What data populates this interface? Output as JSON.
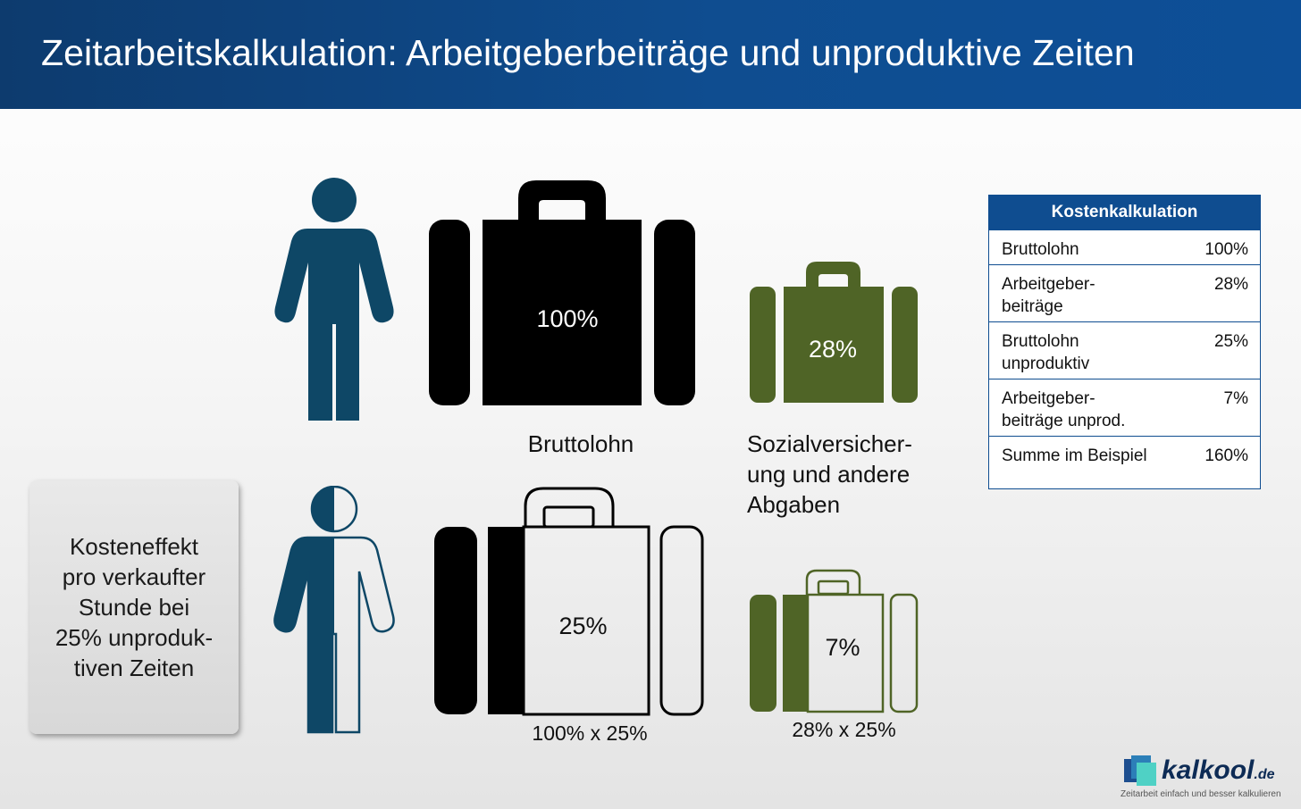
{
  "title": "Zeitarbeitskalkulation: Arbeitgeberbeiträge und unproduktive Zeiten",
  "colors": {
    "header": "#0f4d90",
    "person": "#0e4766",
    "green": "#4f6426",
    "black": "#000000"
  },
  "diagram": {
    "bag_top_main": "100%",
    "bag_top_small": "28%",
    "label_main": "Bruttolohn",
    "label_small": "Sozialversicher-\nung und andere\nAbgaben",
    "bag_bottom_main": "25%",
    "bag_bottom_small": "7%",
    "formula_main": "100% x 25%",
    "formula_small": "28% x 25%"
  },
  "cost_effect": "Kosteneffekt\npro verkaufter\nStunde bei\n25% unproduk-\ntiven Zeiten",
  "table": {
    "header": "Kostenkalkulation",
    "rows": [
      {
        "label": "Bruttolohn",
        "value": "100%"
      },
      {
        "label": "Arbeitgeber-\nbeiträge",
        "value": "28%"
      },
      {
        "label": "Bruttolohn\nunproduktiv",
        "value": "25%"
      },
      {
        "label": "Arbeitgeber-\nbeiträge unprod.",
        "value": "7%"
      },
      {
        "label": "Summe im Beispiel",
        "value": "160%"
      }
    ]
  },
  "logo": {
    "name": "kalkool",
    "tld": ".de",
    "tagline": "Zeitarbeit einfach und besser kalkulieren"
  }
}
